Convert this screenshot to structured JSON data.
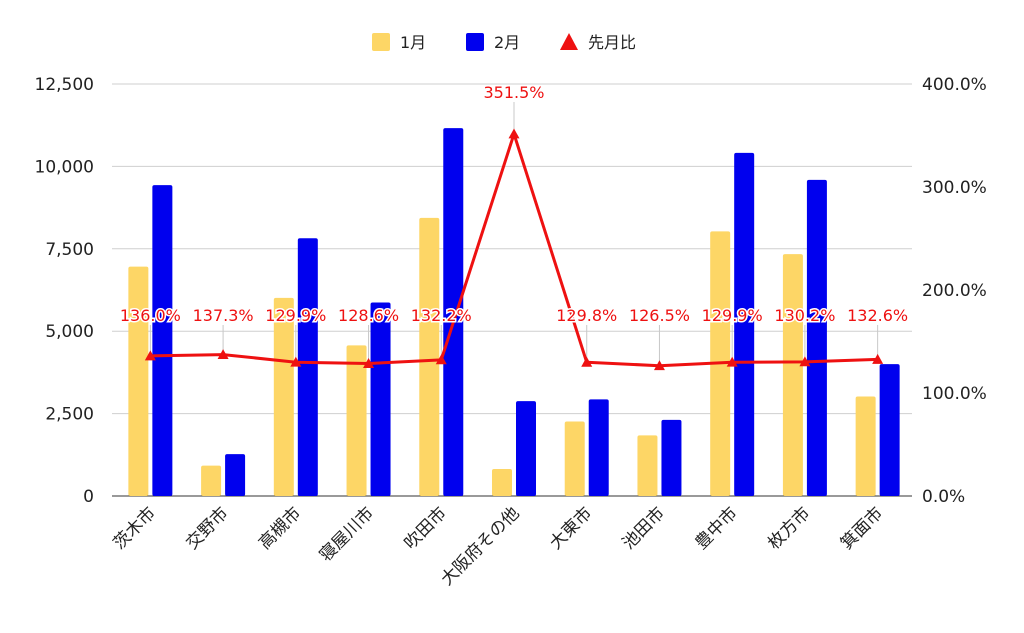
{
  "chart_data": {
    "type": "bar",
    "categories": [
      "茨木市",
      "交野市",
      "高槻市",
      "寝屋川市",
      "吹田市",
      "大阪府その他",
      "大東市",
      "池田市",
      "豊中市",
      "枚方市",
      "箕面市"
    ],
    "series": [
      {
        "name": "1月",
        "type": "bar",
        "axis": "left",
        "color": "#FDD666",
        "values": [
          6960,
          920,
          6010,
          4570,
          8440,
          820,
          2260,
          1840,
          8030,
          7340,
          3020
        ]
      },
      {
        "name": "2月",
        "type": "bar",
        "axis": "left",
        "color": "#0000EE",
        "values": [
          9430,
          1270,
          7820,
          5870,
          11160,
          2880,
          2930,
          2310,
          10410,
          9590,
          4000
        ]
      },
      {
        "name": "先月比",
        "type": "line",
        "axis": "right",
        "color": "#EE1111",
        "values": [
          136.0,
          137.3,
          129.9,
          128.6,
          132.2,
          351.5,
          129.8,
          126.5,
          129.9,
          130.2,
          132.6
        ],
        "labels": [
          "136.0%",
          "137.3%",
          "129.9%",
          "128.6%",
          "132.2%",
          "351.5%",
          "129.8%",
          "126.5%",
          "129.9%",
          "130.2%",
          "132.6%"
        ]
      }
    ],
    "y_left": {
      "ylim": [
        0,
        12500
      ],
      "ticks": [
        "0",
        "2,500",
        "5,000",
        "7,500",
        "10,000",
        "12,500"
      ]
    },
    "y_right": {
      "ylim": [
        0,
        400
      ],
      "ticks": [
        "0.0%",
        "100.0%",
        "200.0%",
        "300.0%",
        "400.0%"
      ]
    },
    "legend": {
      "position": "top",
      "items": [
        "1月",
        "2月",
        "先月比"
      ]
    },
    "grid": true
  }
}
